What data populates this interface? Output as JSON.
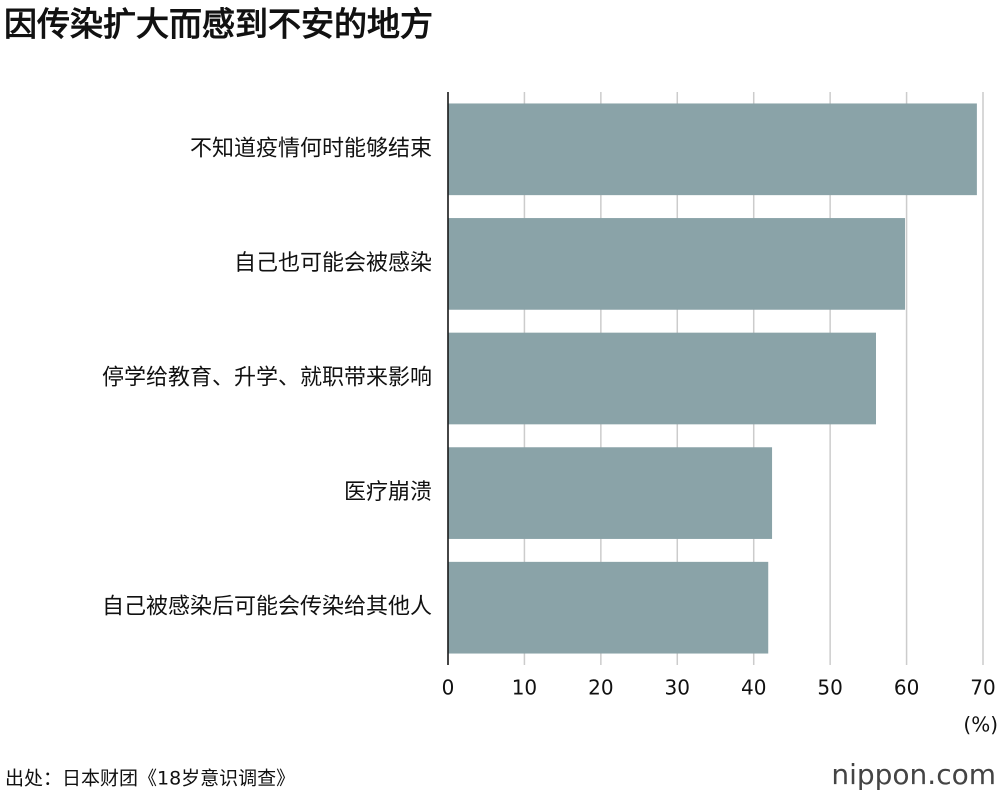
{
  "chart_data": {
    "type": "bar",
    "orientation": "horizontal",
    "title": "因传染扩大而感到不安的地方",
    "categories": [
      "不知道疫情何时能够结束",
      "自己也可能会被感染",
      "停学给教育、升学、就职带来影响",
      "医疗崩溃",
      "自己被感染后可能会传染给其他人"
    ],
    "values": [
      69.2,
      59.8,
      56.0,
      42.4,
      41.9
    ],
    "color": "#8aa3a8",
    "xlim": [
      0,
      70
    ],
    "xticks": [
      0,
      10,
      20,
      30,
      40,
      50,
      60,
      70
    ],
    "x_unit": "(%)",
    "grid": true,
    "source": "出处：日本财团《18岁意识调查》",
    "logo": "nippon.com"
  }
}
